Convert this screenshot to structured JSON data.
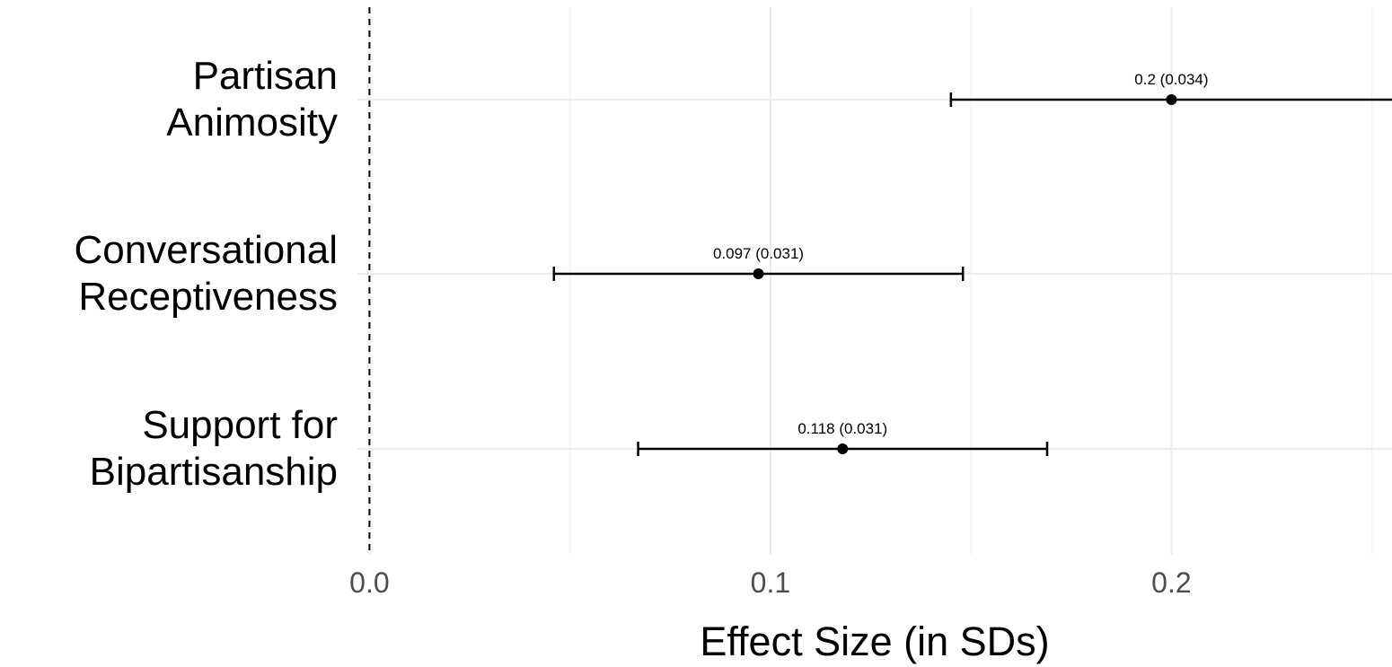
{
  "chart_data": {
    "type": "scatter",
    "subtype": "coefficient-plot-with-error-bars",
    "title": "",
    "xlabel": "Effect Size (in SDs)",
    "ylabel": "",
    "xlim": [
      -0.003,
      0.255
    ],
    "x_ticks": [
      {
        "value": 0.0,
        "label": "0.0"
      },
      {
        "value": 0.1,
        "label": "0.1"
      },
      {
        "value": 0.2,
        "label": "0.2"
      }
    ],
    "x_minor_ticks": [
      0.05,
      0.15,
      0.25
    ],
    "grid": true,
    "reference_line": {
      "x": 0,
      "style": "dashed"
    },
    "legend": "none",
    "categories": [
      {
        "lines": [
          "Partisan",
          "Animosity"
        ],
        "estimate": 0.2,
        "lower": 0.145,
        "upper": 0.256,
        "label": "0.2 (0.034)"
      },
      {
        "lines": [
          "Conversational",
          "Receptiveness"
        ],
        "estimate": 0.097,
        "lower": 0.046,
        "upper": 0.148,
        "label": "0.097 (0.031)"
      },
      {
        "lines": [
          "Support for",
          "Bipartisanship"
        ],
        "estimate": 0.118,
        "lower": 0.067,
        "upper": 0.169,
        "label": "0.118 (0.031)"
      }
    ]
  }
}
